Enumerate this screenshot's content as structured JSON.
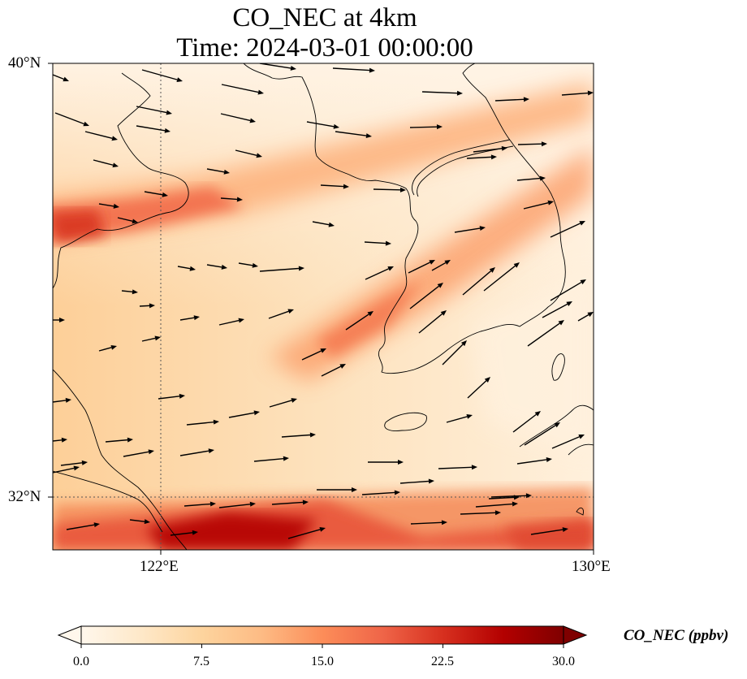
{
  "title": {
    "line1": "CO_NEC at 4km",
    "line2": "Time: 2024-03-01 00:00:00"
  },
  "axes": {
    "lat_labels": [
      "40°N",
      "32°N"
    ],
    "lon_labels": [
      "122°E",
      "130°E"
    ],
    "lon_range": [
      120,
      130
    ],
    "lat_range": [
      31,
      40
    ]
  },
  "colorbar": {
    "label": "CO_NEC (ppbv)",
    "ticks": [
      "0.0",
      "7.5",
      "15.0",
      "22.5",
      "30.0"
    ],
    "range": [
      0,
      30
    ],
    "extend": "both",
    "colormap": "OrRd",
    "colors": [
      "#fff7ec",
      "#fee8c8",
      "#fdd49e",
      "#fdbb84",
      "#fc8d59",
      "#ef6548",
      "#d7301f",
      "#b30000",
      "#7f0000"
    ]
  },
  "map": {
    "gridlines": "dotted at 122°E and 32°N",
    "features": [
      "coastlines",
      "wind vectors"
    ]
  }
}
